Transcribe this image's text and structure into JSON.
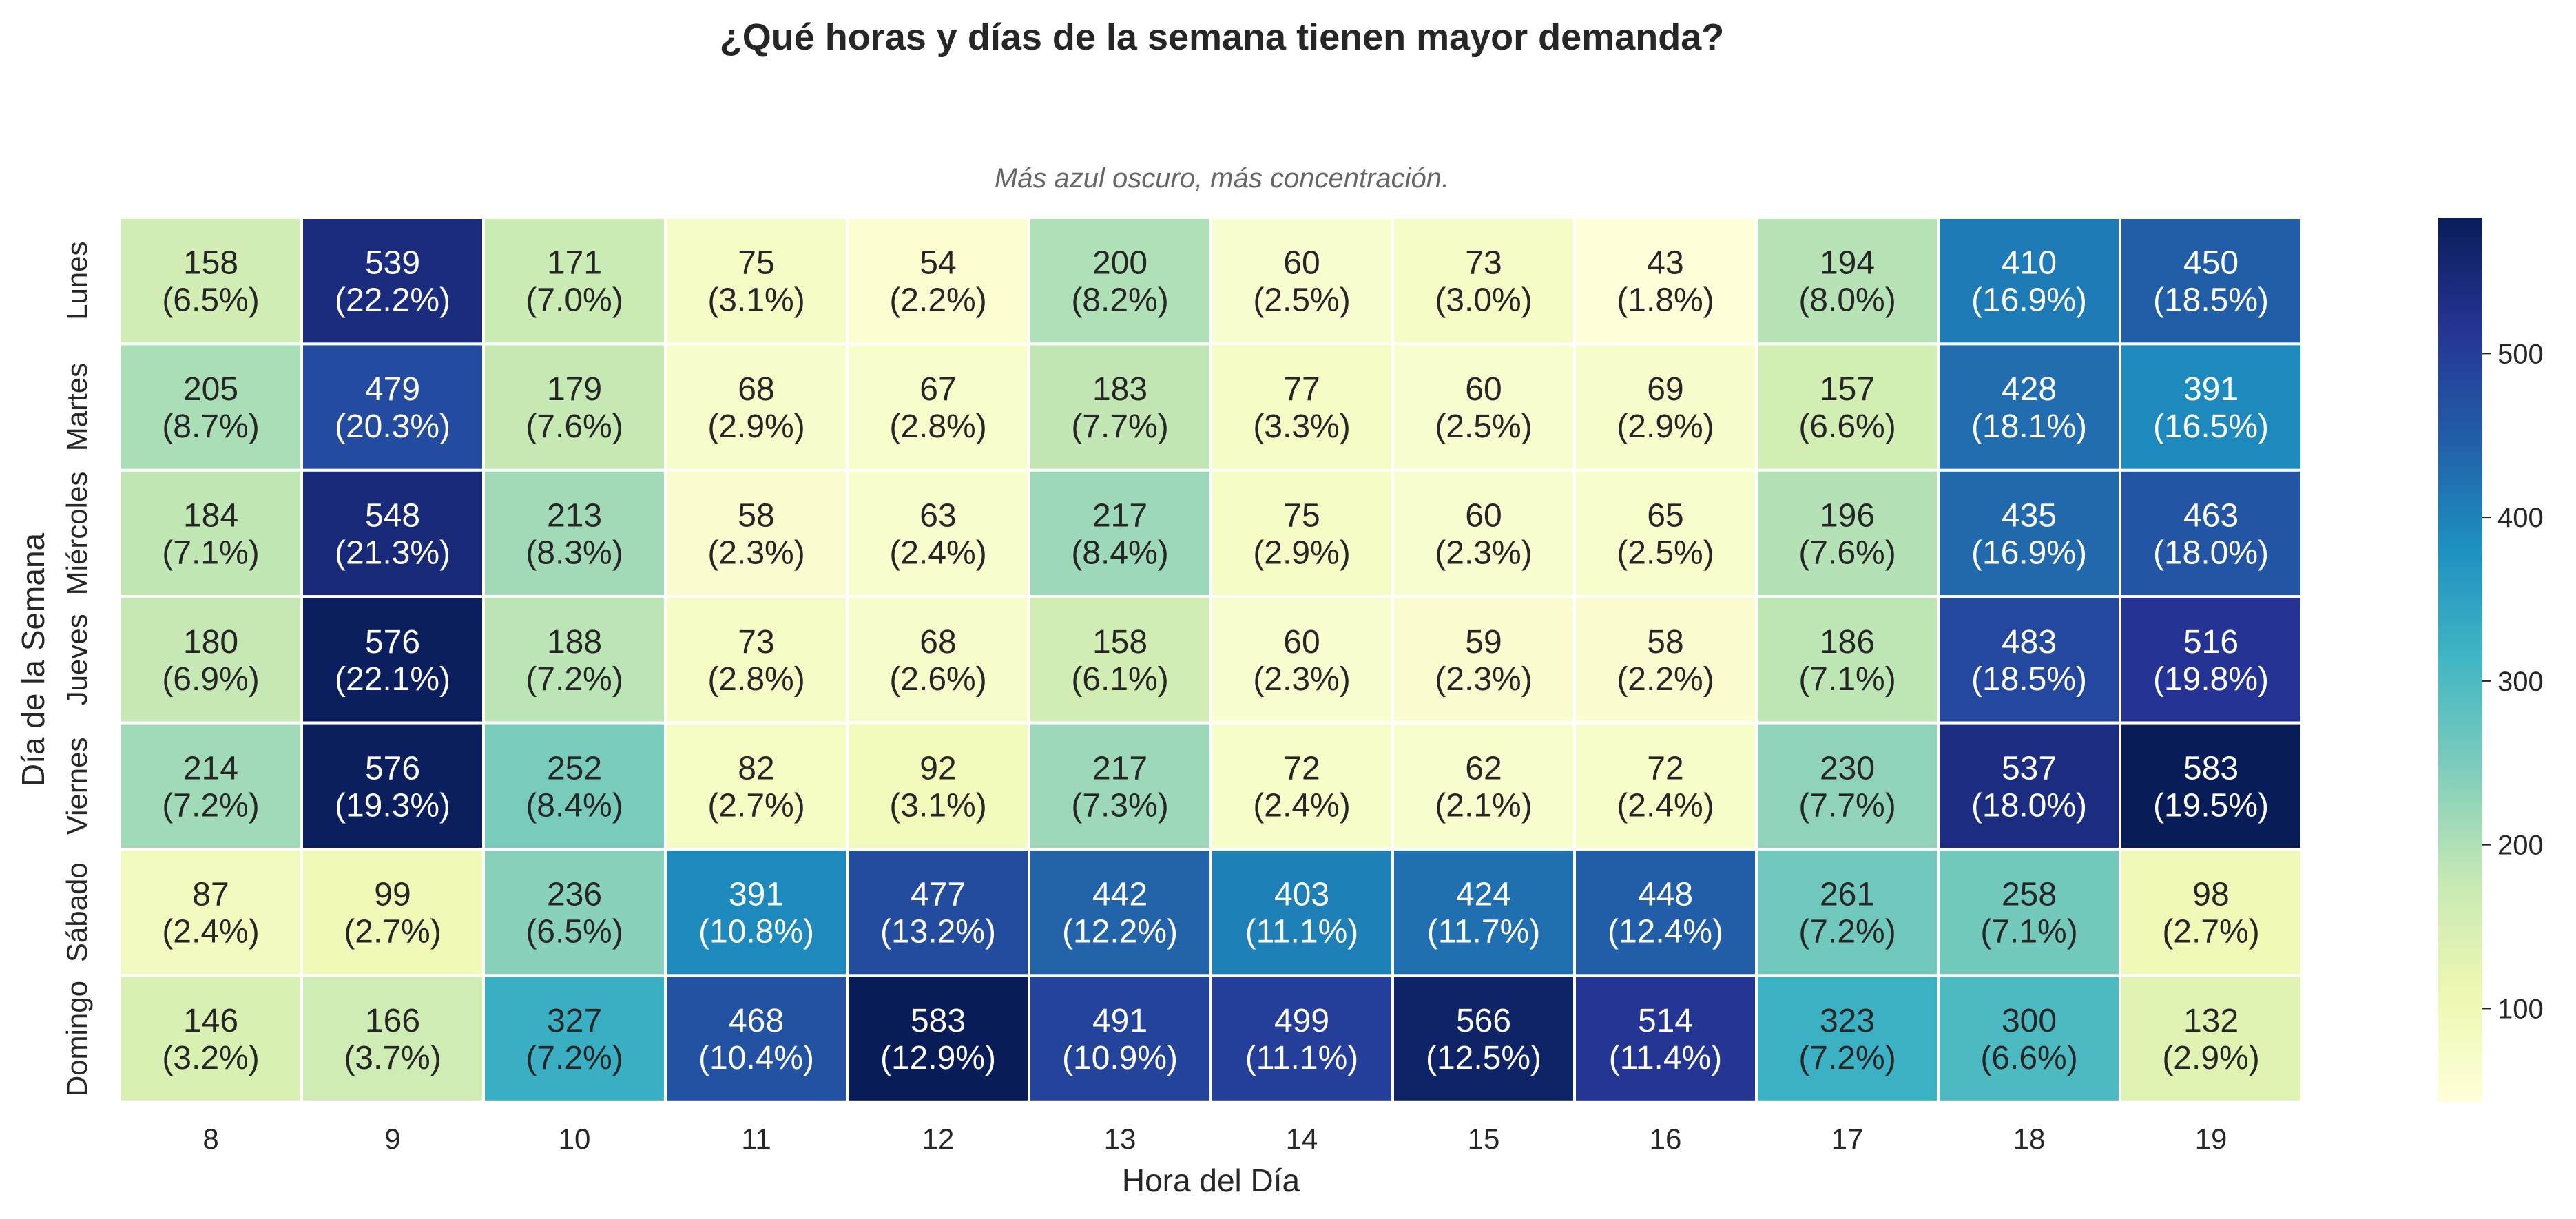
{
  "chart_data": {
    "type": "heatmap",
    "title": "¿Qué horas y días de la semana tienen mayor demanda?",
    "subtitle": "Más azul oscuro, más concentración.",
    "xlabel": "Hora del Día",
    "ylabel": "Día de la Semana",
    "x": [
      "8",
      "9",
      "10",
      "11",
      "12",
      "13",
      "14",
      "15",
      "16",
      "17",
      "18",
      "19"
    ],
    "y": [
      "Lunes",
      "Martes",
      "Miércoles",
      "Jueves",
      "Viernes",
      "Sábado",
      "Domingo"
    ],
    "values": [
      [
        158,
        539,
        171,
        75,
        54,
        200,
        60,
        73,
        43,
        194,
        410,
        450
      ],
      [
        205,
        479,
        179,
        68,
        67,
        183,
        77,
        60,
        69,
        157,
        428,
        391
      ],
      [
        184,
        548,
        213,
        58,
        63,
        217,
        75,
        60,
        65,
        196,
        435,
        463
      ],
      [
        180,
        576,
        188,
        73,
        68,
        158,
        60,
        59,
        58,
        186,
        483,
        516
      ],
      [
        214,
        576,
        252,
        82,
        92,
        217,
        72,
        62,
        72,
        230,
        537,
        583
      ],
      [
        87,
        99,
        236,
        391,
        477,
        442,
        403,
        424,
        448,
        261,
        258,
        98
      ],
      [
        146,
        166,
        327,
        468,
        583,
        491,
        499,
        566,
        514,
        323,
        300,
        132
      ]
    ],
    "percents": [
      [
        "6.5%",
        "22.2%",
        "7.0%",
        "3.1%",
        "2.2%",
        "8.2%",
        "2.5%",
        "3.0%",
        "1.8%",
        "8.0%",
        "16.9%",
        "18.5%"
      ],
      [
        "8.7%",
        "20.3%",
        "7.6%",
        "2.9%",
        "2.8%",
        "7.7%",
        "3.3%",
        "2.5%",
        "2.9%",
        "6.6%",
        "18.1%",
        "16.5%"
      ],
      [
        "7.1%",
        "21.3%",
        "8.3%",
        "2.3%",
        "2.4%",
        "8.4%",
        "2.9%",
        "2.3%",
        "2.5%",
        "7.6%",
        "16.9%",
        "18.0%"
      ],
      [
        "6.9%",
        "22.1%",
        "7.2%",
        "2.8%",
        "2.6%",
        "6.1%",
        "2.3%",
        "2.3%",
        "2.2%",
        "7.1%",
        "18.5%",
        "19.8%"
      ],
      [
        "7.2%",
        "19.3%",
        "8.4%",
        "2.7%",
        "3.1%",
        "7.3%",
        "2.4%",
        "2.1%",
        "2.4%",
        "7.7%",
        "18.0%",
        "19.5%"
      ],
      [
        "2.4%",
        "2.7%",
        "6.5%",
        "10.8%",
        "13.2%",
        "12.2%",
        "11.1%",
        "11.7%",
        "12.4%",
        "7.2%",
        "7.1%",
        "2.7%"
      ],
      [
        "3.2%",
        "3.7%",
        "7.2%",
        "10.4%",
        "12.9%",
        "10.9%",
        "11.1%",
        "12.5%",
        "11.4%",
        "7.2%",
        "6.6%",
        "2.9%"
      ]
    ],
    "colorscale": "YlGnBu",
    "vmin": 43,
    "vmax": 583,
    "colorbar_ticks": [
      100,
      200,
      300,
      400,
      500
    ],
    "colors": [
      "#ffffd9",
      "#edf8b1",
      "#c7e9b4",
      "#7fcdbb",
      "#41b6c4",
      "#1d91c0",
      "#225ea8",
      "#253494",
      "#081d58"
    ]
  }
}
